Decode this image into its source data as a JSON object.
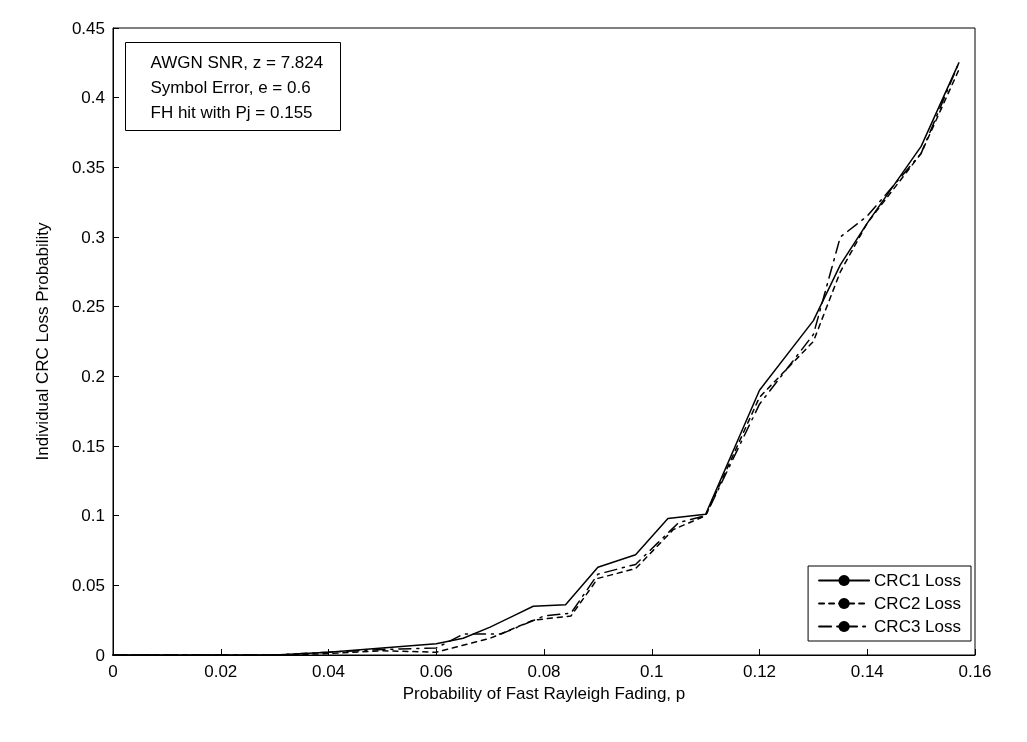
{
  "chart_data": {
    "type": "line",
    "xlabel": "Probability of Fast Rayleigh Fading, p",
    "ylabel": "Individual CRC Loss Probability",
    "xlim": [
      0,
      0.16
    ],
    "xticks": [
      0,
      0.02,
      0.04,
      0.06,
      0.08,
      0.1,
      0.12,
      0.14,
      0.16
    ],
    "ylim": [
      0,
      0.45
    ],
    "yticks": [
      0,
      0.05,
      0.1,
      0.15,
      0.2,
      0.25,
      0.3,
      0.35,
      0.4,
      0.45
    ],
    "grid": false,
    "legend": "bottom right",
    "marker": "none",
    "annotations": [
      "AWGN SNR, z = 7.824",
      "Symbol Error, e = 0.6",
      "FH hit with Pj = 0.155"
    ],
    "series": [
      {
        "name": "CRC1 Loss",
        "color": "#000000",
        "line_style": "solid",
        "x": [
          0,
          0.03,
          0.04,
          0.05,
          0.06,
          0.065,
          0.07,
          0.078,
          0.084,
          0.09,
          0.097,
          0.103,
          0.11,
          0.12,
          0.13,
          0.135,
          0.14,
          0.15,
          0.157
        ],
        "values": [
          0,
          0,
          0.002,
          0.005,
          0.008,
          0.012,
          0.02,
          0.035,
          0.036,
          0.063,
          0.072,
          0.098,
          0.101,
          0.19,
          0.24,
          0.28,
          0.31,
          0.365,
          0.425
        ]
      },
      {
        "name": "CRC2 Loss",
        "color": "#000000",
        "line_style": "dotted",
        "x": [
          0,
          0.03,
          0.04,
          0.05,
          0.06,
          0.07,
          0.078,
          0.085,
          0.09,
          0.097,
          0.104,
          0.11,
          0.12,
          0.13,
          0.135,
          0.14,
          0.15,
          0.157
        ],
        "values": [
          0,
          0,
          0.001,
          0.003,
          0.002,
          0.012,
          0.025,
          0.028,
          0.055,
          0.062,
          0.09,
          0.1,
          0.185,
          0.225,
          0.275,
          0.31,
          0.36,
          0.42
        ]
      },
      {
        "name": "CRC3 Loss",
        "color": "#000000",
        "line_style": "dashed",
        "x": [
          0,
          0.03,
          0.04,
          0.05,
          0.06,
          0.065,
          0.072,
          0.08,
          0.085,
          0.09,
          0.097,
          0.105,
          0.11,
          0.12,
          0.13,
          0.135,
          0.14,
          0.15,
          0.157
        ],
        "values": [
          0,
          0,
          0.002,
          0.004,
          0.005,
          0.015,
          0.015,
          0.028,
          0.03,
          0.058,
          0.065,
          0.095,
          0.1,
          0.18,
          0.23,
          0.3,
          0.315,
          0.36,
          0.425
        ]
      }
    ]
  }
}
